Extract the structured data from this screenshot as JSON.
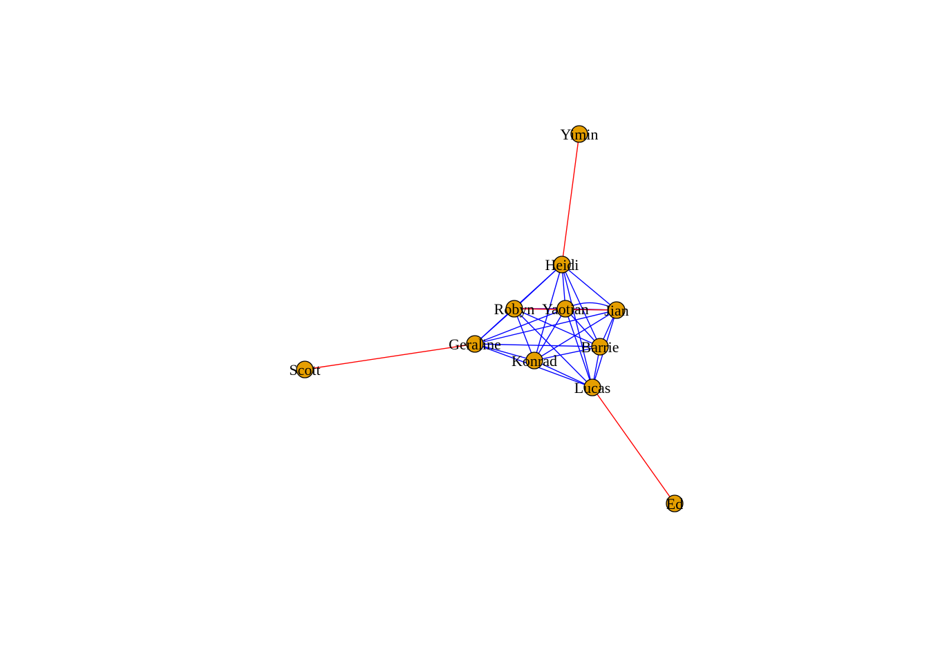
{
  "graph": {
    "type": "network",
    "node_color": "#E69F00",
    "node_border_color": "#000000",
    "edge_colors": {
      "intra": "#0000FF",
      "bridge": "#FF0000"
    },
    "nodes": [
      {
        "id": "Heidi",
        "label": "Heidi"
      },
      {
        "id": "Robyn",
        "label": "Robyn"
      },
      {
        "id": "Yaotian",
        "label": "Yaotian"
      },
      {
        "id": "Jian",
        "label": "Jian"
      },
      {
        "id": "Geraline",
        "label": "Geraline"
      },
      {
        "id": "Barrie",
        "label": "Barrie"
      },
      {
        "id": "Konrad",
        "label": "Konrad"
      },
      {
        "id": "Lucas",
        "label": "Lucas"
      },
      {
        "id": "Yimin",
        "label": "Yimin"
      },
      {
        "id": "Scott",
        "label": "Scott"
      },
      {
        "id": "Ed",
        "label": "Ed"
      }
    ],
    "edges": [
      {
        "source": "Heidi",
        "target": "Robyn",
        "kind": "intra"
      },
      {
        "source": "Heidi",
        "target": "Yaotian",
        "kind": "intra"
      },
      {
        "source": "Heidi",
        "target": "Jian",
        "kind": "intra"
      },
      {
        "source": "Heidi",
        "target": "Geraline",
        "kind": "intra"
      },
      {
        "source": "Heidi",
        "target": "Barrie",
        "kind": "intra"
      },
      {
        "source": "Heidi",
        "target": "Konrad",
        "kind": "intra"
      },
      {
        "source": "Heidi",
        "target": "Lucas",
        "kind": "intra"
      },
      {
        "source": "Robyn",
        "target": "Yaotian",
        "kind": "intra"
      },
      {
        "source": "Robyn",
        "target": "Jian",
        "kind": "intra"
      },
      {
        "source": "Robyn",
        "target": "Geraline",
        "kind": "intra"
      },
      {
        "source": "Robyn",
        "target": "Barrie",
        "kind": "intra"
      },
      {
        "source": "Robyn",
        "target": "Konrad",
        "kind": "intra"
      },
      {
        "source": "Robyn",
        "target": "Lucas",
        "kind": "intra"
      },
      {
        "source": "Yaotian",
        "target": "Jian",
        "kind": "intra"
      },
      {
        "source": "Yaotian",
        "target": "Geraline",
        "kind": "intra"
      },
      {
        "source": "Yaotian",
        "target": "Barrie",
        "kind": "intra"
      },
      {
        "source": "Yaotian",
        "target": "Konrad",
        "kind": "intra"
      },
      {
        "source": "Yaotian",
        "target": "Lucas",
        "kind": "intra"
      },
      {
        "source": "Jian",
        "target": "Geraline",
        "kind": "intra"
      },
      {
        "source": "Jian",
        "target": "Barrie",
        "kind": "intra"
      },
      {
        "source": "Jian",
        "target": "Konrad",
        "kind": "intra"
      },
      {
        "source": "Jian",
        "target": "Lucas",
        "kind": "intra"
      },
      {
        "source": "Geraline",
        "target": "Barrie",
        "kind": "intra"
      },
      {
        "source": "Geraline",
        "target": "Konrad",
        "kind": "intra"
      },
      {
        "source": "Geraline",
        "target": "Lucas",
        "kind": "intra"
      },
      {
        "source": "Barrie",
        "target": "Konrad",
        "kind": "intra"
      },
      {
        "source": "Barrie",
        "target": "Lucas",
        "kind": "intra"
      },
      {
        "source": "Konrad",
        "target": "Lucas",
        "kind": "intra"
      },
      {
        "source": "Yaotian",
        "target": "Jian",
        "kind": "intra",
        "curved": true
      },
      {
        "source": "Robyn",
        "target": "Jian",
        "kind": "bridge"
      },
      {
        "source": "Heidi",
        "target": "Yimin",
        "kind": "bridge"
      },
      {
        "source": "Geraline",
        "target": "Scott",
        "kind": "bridge"
      },
      {
        "source": "Lucas",
        "target": "Ed",
        "kind": "bridge"
      }
    ]
  }
}
